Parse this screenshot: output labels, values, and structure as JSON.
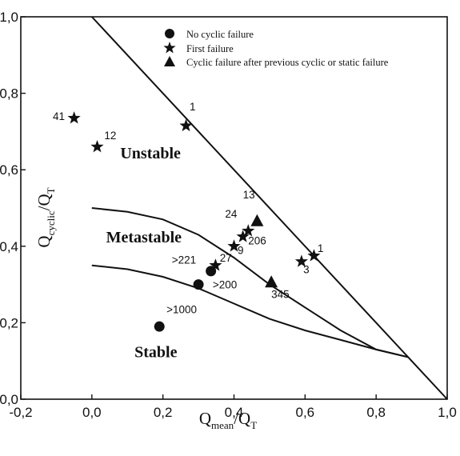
{
  "chart_data": {
    "type": "scatter",
    "title": "",
    "xlabel": {
      "main": "Q",
      "sub": "mean",
      "tail": "/Q",
      "sub2": "T"
    },
    "ylabel": {
      "main": "Q",
      "sub": "cyclic",
      "tail": "/Q",
      "sub2": "T"
    },
    "xlim": [
      -0.2,
      1.0
    ],
    "ylim": [
      0.0,
      1.0
    ],
    "x_ticks": [
      {
        "value": -0.2,
        "label": "-0,2"
      },
      {
        "value": 0.0,
        "label": "0,0"
      },
      {
        "value": 0.2,
        "label": "0,2"
      },
      {
        "value": 0.4,
        "label": "0,4"
      },
      {
        "value": 0.6,
        "label": "0,6"
      },
      {
        "value": 0.8,
        "label": "0,8"
      },
      {
        "value": 1.0,
        "label": "1,0"
      }
    ],
    "y_ticks": [
      {
        "value": 0.0,
        "label": "0,0"
      },
      {
        "value": 0.2,
        "label": "0,2"
      },
      {
        "value": 0.4,
        "label": "0,4"
      },
      {
        "value": 0.6,
        "label": "0,6"
      },
      {
        "value": 0.8,
        "label": "0,8"
      },
      {
        "value": 1.0,
        "label": "1,0"
      }
    ],
    "grid": false,
    "legend_position": "top-center",
    "legend": [
      {
        "name": "No cyclic failure",
        "marker": "circle"
      },
      {
        "name": "First failure",
        "marker": "star"
      },
      {
        "name": "Cyclic failure after previous cyclic or static failure",
        "marker": "triangle"
      }
    ],
    "boundary_lines": [
      {
        "points": [
          [
            0.0,
            1.0
          ],
          [
            1.0,
            0.0
          ]
        ]
      },
      {
        "points": [
          [
            0.0,
            0.5
          ],
          [
            0.1,
            0.49
          ],
          [
            0.2,
            0.47
          ],
          [
            0.3,
            0.43
          ],
          [
            0.4,
            0.37
          ],
          [
            0.5,
            0.3
          ],
          [
            0.6,
            0.24
          ],
          [
            0.7,
            0.18
          ],
          [
            0.8,
            0.13
          ],
          [
            0.89,
            0.11
          ]
        ]
      },
      {
        "points": [
          [
            0.0,
            0.35
          ],
          [
            0.1,
            0.34
          ],
          [
            0.2,
            0.32
          ],
          [
            0.3,
            0.29
          ],
          [
            0.4,
            0.25
          ],
          [
            0.5,
            0.21
          ],
          [
            0.6,
            0.18
          ],
          [
            0.7,
            0.155
          ],
          [
            0.8,
            0.13
          ],
          [
            0.89,
            0.11
          ]
        ]
      }
    ],
    "regions": [
      {
        "label": "Unstable",
        "x": 0.08,
        "y": 0.63
      },
      {
        "label": "Metastable",
        "x": 0.04,
        "y": 0.41
      },
      {
        "label": "Stable",
        "x": 0.12,
        "y": 0.11
      }
    ],
    "series": [
      {
        "name": "No cyclic failure",
        "marker": "circle",
        "points": [
          {
            "x": 0.19,
            "y": 0.19,
            "label": ">1000",
            "lx": 0.21,
            "ly": 0.225
          },
          {
            "x": 0.3,
            "y": 0.3,
            "label": ">200",
            "lx": 0.34,
            "ly": 0.29
          },
          {
            "x": 0.335,
            "y": 0.335,
            "label": ">221",
            "lx": 0.225,
            "ly": 0.355
          }
        ]
      },
      {
        "name": "First failure",
        "marker": "star",
        "points": [
          {
            "x": -0.05,
            "y": 0.735,
            "label": "41",
            "lx": -0.11,
            "ly": 0.73
          },
          {
            "x": 0.015,
            "y": 0.66,
            "label": "12",
            "lx": 0.035,
            "ly": 0.68
          },
          {
            "x": 0.265,
            "y": 0.715,
            "label": "1",
            "lx": 0.275,
            "ly": 0.755
          },
          {
            "x": 0.4,
            "y": 0.4,
            "label": "9",
            "lx": 0.41,
            "ly": 0.38
          },
          {
            "x": 0.348,
            "y": 0.35,
            "label": "27",
            "lx": 0.36,
            "ly": 0.36
          },
          {
            "x": 0.425,
            "y": 0.425,
            "label": "",
            "lx": 0,
            "ly": 0
          },
          {
            "x": 0.44,
            "y": 0.44,
            "label": "206",
            "lx": 0.44,
            "ly": 0.405
          },
          {
            "x": 0.59,
            "y": 0.36,
            "label": "3",
            "lx": 0.595,
            "ly": 0.33
          },
          {
            "x": 0.625,
            "y": 0.375,
            "label": "1",
            "lx": 0.635,
            "ly": 0.385
          }
        ]
      },
      {
        "name": "Cyclic failure after previous cyclic or static failure",
        "marker": "triangle",
        "points": [
          {
            "x": 0.465,
            "y": 0.465,
            "label": "24",
            "lx": 0.375,
            "ly": 0.475
          },
          {
            "x": 0.505,
            "y": 0.305,
            "label": "345",
            "lx": 0.505,
            "ly": 0.265
          }
        ]
      }
    ],
    "extra_labels": [
      {
        "text": "13",
        "x": 0.425,
        "y": 0.525
      }
    ]
  }
}
